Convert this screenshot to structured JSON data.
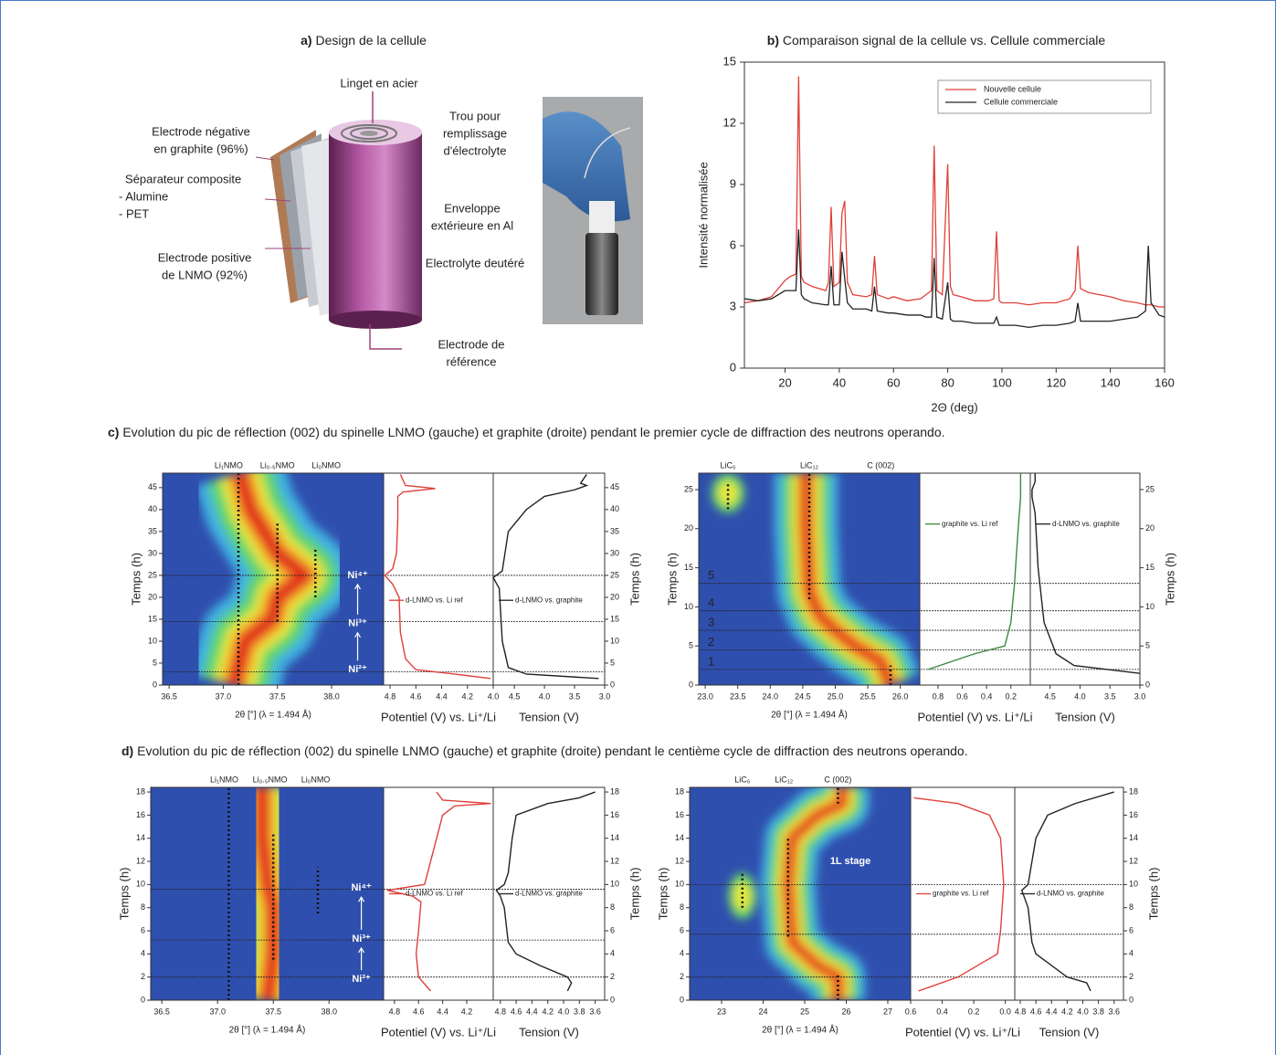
{
  "panel_a": {
    "label": "a)",
    "title": "Design de la cellule",
    "callouts": [
      {
        "lines": [
          "Linget en acier"
        ]
      },
      {
        "lines": [
          "Electrode négative",
          "en graphite (96%)"
        ]
      },
      {
        "lines": [
          "Séparateur composite",
          "- Alumine",
          "- PET"
        ]
      },
      {
        "lines": [
          "Electrode positive",
          "de LNMO (92%)"
        ]
      },
      {
        "lines": [
          "Trou pour",
          "remplissage",
          "d'électrolyte"
        ]
      },
      {
        "lines": [
          "Enveloppe",
          "extérieure en Al"
        ]
      },
      {
        "lines": [
          "Electrolyte deutéré"
        ]
      },
      {
        "lines": [
          "Electrode de",
          "référence"
        ]
      }
    ]
  },
  "panel_c": {
    "label": "c)",
    "title": "Evolution du pic de réflection (002) du spinelle LNMO (gauche) et graphite (droite) pendant le premier cycle de diffraction des neutrons operando."
  },
  "panel_d": {
    "label": "d)",
    "title": "Evolution du pic de réflection (002) du spinelle LNMO (gauche) et graphite (droite) pendant le centième cycle de diffraction des neutrons operando."
  },
  "chart_data": [
    {
      "type": "line",
      "label": "b)",
      "title": "Comparaison signal de la cellule vs. Cellule commerciale",
      "xlabel": "2Θ (deg)",
      "ylabel": "Intensité normalisée",
      "xlim": [
        5,
        160
      ],
      "xticks": [
        20,
        40,
        60,
        80,
        100,
        120,
        140,
        160
      ],
      "ylim": [
        0,
        15
      ],
      "yticks": [
        0,
        3,
        6,
        9,
        12,
        15
      ],
      "legend": "upper right",
      "x": [
        5,
        10,
        15,
        20,
        22,
        24,
        25,
        26,
        27,
        30,
        35,
        36,
        37,
        38,
        40,
        41,
        42,
        43,
        45,
        50,
        52,
        53,
        54,
        58,
        60,
        65,
        70,
        72,
        74,
        75,
        76,
        78,
        80,
        81,
        82,
        85,
        90,
        95,
        97,
        98,
        99,
        100,
        105,
        110,
        115,
        120,
        125,
        127,
        128,
        129,
        132,
        140,
        145,
        150,
        153,
        154,
        155,
        158,
        160
      ],
      "series": [
        {
          "name": "Nouvelle cellule",
          "color": "#e0403a",
          "values": [
            3.2,
            3.3,
            3.5,
            4.3,
            4.5,
            4.6,
            14.3,
            4.5,
            4.2,
            4.0,
            3.8,
            4.2,
            7.9,
            4.0,
            4.2,
            7.6,
            8.2,
            4.2,
            3.6,
            3.5,
            3.6,
            5.5,
            3.6,
            3.4,
            3.5,
            3.3,
            3.4,
            3.6,
            3.8,
            10.9,
            3.8,
            3.6,
            10.0,
            4.0,
            3.6,
            3.5,
            3.3,
            3.3,
            3.4,
            6.7,
            3.3,
            3.2,
            3.2,
            3.1,
            3.2,
            3.2,
            3.4,
            3.8,
            6.0,
            3.9,
            3.7,
            3.5,
            3.3,
            3.2,
            3.1,
            3.1,
            3.1,
            3.0,
            3.0
          ]
        },
        {
          "name": "Cellule commerciale",
          "color": "#222222",
          "values": [
            3.4,
            3.3,
            3.4,
            3.8,
            3.8,
            3.8,
            6.8,
            3.6,
            3.4,
            3.2,
            3.1,
            3.1,
            5.0,
            3.1,
            3.1,
            5.7,
            4.4,
            3.2,
            2.9,
            2.9,
            2.8,
            4.0,
            2.8,
            2.7,
            2.7,
            2.6,
            2.6,
            2.5,
            2.5,
            5.4,
            2.5,
            2.4,
            4.2,
            2.4,
            2.3,
            2.3,
            2.2,
            2.2,
            2.2,
            2.5,
            2.1,
            2.1,
            2.1,
            2.0,
            2.1,
            2.1,
            2.2,
            2.3,
            3.2,
            2.3,
            2.3,
            2.3,
            2.4,
            2.5,
            2.8,
            6.0,
            3.2,
            2.6,
            2.5
          ]
        }
      ]
    },
    {
      "type": "operando",
      "peak_labels": [
        {
          "text": "Li₁NMO",
          "x": 37.05
        },
        {
          "text": "Li₀.₅NMO",
          "x": 37.5
        },
        {
          "text": "Li₀NMO",
          "x": 37.95
        }
      ],
      "xlabel": "2θ [°] (λ = 1.494 Å)",
      "xlim": [
        36.44,
        38.48
      ],
      "xticks": [
        36.5,
        {
          "value": 37,
          "label": "37.0"
        },
        37.5,
        {
          "value": 38,
          "label": "38.0"
        }
      ],
      "ylabel": "Temps (h)",
      "ylim": [
        0,
        48.3
      ],
      "yticks": [
        0,
        5,
        10,
        15,
        20,
        25,
        30,
        35,
        40,
        45
      ],
      "ridge": {
        "time": [
          0,
          10,
          15,
          20,
          25,
          30,
          40,
          48.3
        ],
        "position": [
          37.1,
          37.2,
          37.45,
          37.5,
          37.75,
          37.5,
          37.25,
          37.15
        ]
      },
      "guides": [
        {
          "x": 37.14,
          "from": 0,
          "to": 48.3
        },
        {
          "x": 37.5,
          "from": 14.5,
          "to": 37
        },
        {
          "x": 37.85,
          "from": 20,
          "to": 31
        }
      ],
      "hlines": [
        3,
        14.5,
        25
      ],
      "annotations": [
        {
          "text": "Ni²⁺",
          "x": 38.24,
          "time": 3.5
        },
        {
          "text": "Ni³⁺",
          "x": 38.24,
          "time": 14
        },
        {
          "text": "Ni⁴⁺",
          "x": 38.24,
          "time": 25
        }
      ],
      "potential": {
        "xlabel": "Potentiel (V) vs. Li⁺/Li",
        "xlim": [
          4.85,
          4.0
        ],
        "xticks": [
          4.8,
          4.6,
          4.4,
          4.2,
          {
            "value": 4,
            "label": "4.0"
          }
        ],
        "series": {
          "name": "d-LNMO vs. Li ref",
          "color": "#e0403a",
          "time": [
            1.5,
            2.5,
            3.5,
            6,
            12,
            20,
            23,
            25,
            26.5,
            30,
            38,
            43,
            44,
            44.8,
            45.5,
            48
          ],
          "values": [
            4.02,
            4.3,
            4.6,
            4.68,
            4.72,
            4.73,
            4.78,
            4.84,
            4.78,
            4.75,
            4.74,
            4.74,
            4.7,
            4.45,
            4.68,
            4.72
          ]
        }
      },
      "tension": {
        "xlabel": "Tension (V)",
        "xlim": [
          4.85,
          3.0
        ],
        "xticks": [
          4.5,
          {
            "value": 4,
            "label": "4.0"
          },
          3.5,
          {
            "value": 3,
            "label": "3.0"
          }
        ],
        "series": {
          "name": "d-LNMO vs. graphite",
          "color": "#222222",
          "time": [
            1.5,
            2.5,
            4,
            10,
            22,
            24.5,
            26,
            35,
            40,
            43,
            44.5,
            45.5,
            46,
            48
          ],
          "values": [
            3.1,
            4.3,
            4.6,
            4.7,
            4.75,
            4.85,
            4.7,
            4.6,
            4.3,
            4.0,
            3.5,
            3.3,
            3.4,
            3.3
          ]
        }
      }
    },
    {
      "type": "operando",
      "peak_labels": [
        {
          "text": "LiC₆",
          "x": 23.35
        },
        {
          "text": "LiC₁₂",
          "x": 24.6
        },
        {
          "text": "C (002)",
          "x": 25.7
        }
      ],
      "xlabel": "2θ [°] (λ = 1.494 Å)",
      "xlim": [
        22.9,
        26.3
      ],
      "xticks": [
        {
          "value": 23,
          "label": "23.0"
        },
        23.5,
        {
          "value": 24,
          "label": "24.0"
        },
        24.5,
        {
          "value": 25,
          "label": "25.0"
        },
        25.5,
        {
          "value": 26,
          "label": "26.0"
        }
      ],
      "ylabel": "Temps (h)",
      "ylim": [
        0,
        27.1
      ],
      "yticks": [
        0,
        5,
        10,
        15,
        20,
        25
      ],
      "ridge": {
        "time": [
          0,
          3,
          5,
          7,
          9,
          12,
          20,
          27.1
        ],
        "position": [
          25.85,
          25.7,
          25.3,
          25.0,
          24.75,
          24.6,
          24.55,
          24.55
        ]
      },
      "spots": [
        {
          "x": 23.35,
          "from": 22,
          "to": 27.1
        }
      ],
      "guides": [
        {
          "x": 23.35,
          "from": 22.5,
          "to": 26
        },
        {
          "x": 24.6,
          "from": 11,
          "to": 27.1
        },
        {
          "x": 25.85,
          "from": 0,
          "to": 2.5
        }
      ],
      "hlines": [
        2,
        4.5,
        7,
        9.5,
        13
      ],
      "hline_labels": [
        "1",
        "2",
        "3",
        "4",
        "5"
      ],
      "potential": {
        "xlabel": "Potentiel (V) vs. Li⁺/Li",
        "xlim": [
          0.95,
          0.04
        ],
        "xticks": [
          0.8,
          0.6,
          0.4,
          0.2
        ],
        "series": {
          "name": "graphite vs. Li ref",
          "color": "#3a8a3a",
          "time": [
            2,
            4,
            5,
            8,
            13,
            20,
            24,
            26,
            27.1
          ],
          "values": [
            0.88,
            0.5,
            0.25,
            0.2,
            0.17,
            0.14,
            0.12,
            0.12,
            0.12
          ]
        }
      },
      "tension": {
        "xlabel": "Tension (V)",
        "xlim": [
          4.83,
          3.0
        ],
        "xticks": [
          4.5,
          {
            "value": 4,
            "label": "4.0"
          },
          3.5,
          {
            "value": 3,
            "label": "3.0"
          }
        ],
        "series": {
          "name": "d-LNMO vs. graphite",
          "color": "#222222",
          "time": [
            1.5,
            2.5,
            4,
            8,
            15,
            22,
            24,
            25,
            26,
            27.1
          ],
          "values": [
            3.0,
            4.1,
            4.4,
            4.6,
            4.7,
            4.75,
            4.8,
            4.8,
            4.75,
            4.75
          ]
        }
      }
    },
    {
      "type": "operando",
      "peak_labels": [
        {
          "text": "Li₁NMO",
          "x": 37.06
        },
        {
          "text": "Li₀.₅NMO",
          "x": 37.47
        },
        {
          "text": "Li₀NMO",
          "x": 37.88
        }
      ],
      "xlabel": "2θ [°] (λ = 1.494 Å)",
      "xlim": [
        36.4,
        38.49
      ],
      "xticks": [
        36.5,
        {
          "value": 37,
          "label": "37.0"
        },
        37.5,
        {
          "value": 38,
          "label": "38.0"
        }
      ],
      "ylabel": "Temps (h)",
      "ylim": [
        0,
        18.4
      ],
      "yticks": [
        0,
        2,
        4,
        6,
        8,
        10,
        12,
        14,
        16,
        18
      ],
      "ridge": {
        "time": [
          0,
          4,
          8,
          10,
          14,
          18.4
        ],
        "position": [
          37.45,
          37.5,
          37.5,
          37.45,
          37.4,
          37.4
        ]
      },
      "guides": [
        {
          "x": 37.1,
          "from": 0,
          "to": 18.4
        },
        {
          "x": 37.5,
          "from": 3.5,
          "to": 14.5
        },
        {
          "x": 37.9,
          "from": 7.5,
          "to": 11.5
        }
      ],
      "hlines": [
        2,
        5.2,
        9.6
      ],
      "annotations": [
        {
          "text": "Ni²⁺",
          "x": 38.29,
          "time": 1.8
        },
        {
          "text": "Ni³⁺",
          "x": 38.29,
          "time": 5.3
        },
        {
          "text": "Ni⁴⁺",
          "x": 38.29,
          "time": 9.7
        }
      ],
      "potential": {
        "xlabel": "Potentiel (V) vs. Li⁺/Li",
        "xlim": [
          4.89,
          3.98
        ],
        "xticks": [
          4.8,
          4.6,
          4.4,
          4.2
        ],
        "series": {
          "name": "d-LNMO vs. Li ref",
          "color": "#e0403a",
          "time": [
            0.8,
            2,
            4,
            6,
            8.5,
            9,
            9.5,
            10,
            12,
            14,
            16,
            16.8,
            17,
            17.3,
            18
          ],
          "values": [
            4.5,
            4.6,
            4.62,
            4.6,
            4.58,
            4.65,
            4.86,
            4.55,
            4.5,
            4.45,
            4.4,
            4.3,
            4.0,
            4.4,
            4.45
          ]
        }
      },
      "tension": {
        "xlabel": "Tension (V)",
        "xlim": [
          4.89,
          3.48
        ],
        "xticks": [
          4.8,
          4.6,
          4.4,
          4.2,
          {
            "value": 4,
            "label": "4.0"
          },
          3.8,
          3.6
        ],
        "series": {
          "name": "d-LNMO vs. graphite",
          "color": "#222222",
          "time": [
            0.8,
            1.5,
            2,
            3,
            4,
            5,
            8,
            9,
            9.5,
            10,
            11,
            14,
            16,
            17,
            17.5,
            18
          ],
          "values": [
            3.95,
            3.9,
            3.95,
            4.3,
            4.6,
            4.7,
            4.75,
            4.8,
            4.85,
            4.75,
            4.7,
            4.65,
            4.6,
            4.2,
            3.8,
            3.6
          ]
        }
      }
    },
    {
      "type": "operando",
      "peak_labels": [
        {
          "text": "LiC₆",
          "x": 23.5
        },
        {
          "text": "LiC₁₂",
          "x": 24.5
        },
        {
          "text": "C (002)",
          "x": 25.8
        }
      ],
      "xlabel": "2θ [°] (λ = 1.494 Å)",
      "xlim": [
        22.23,
        27.55
      ],
      "xticks": [
        23,
        24,
        25,
        26,
        27
      ],
      "ylabel": "Temps (h)",
      "ylim": [
        0,
        18.4
      ],
      "yticks": [
        0,
        2,
        4,
        6,
        8,
        10,
        12,
        14,
        16,
        18
      ],
      "ridge": {
        "time": [
          0,
          2,
          3,
          5,
          10,
          14,
          16,
          17,
          18.4
        ],
        "position": [
          25.8,
          25.8,
          25.3,
          24.7,
          24.6,
          24.7,
          25.3,
          25.9,
          25.9
        ]
      },
      "spots": [
        {
          "x": 23.5,
          "from": 7,
          "to": 11
        }
      ],
      "guides": [
        {
          "x": 23.5,
          "from": 8,
          "to": 11
        },
        {
          "x": 24.6,
          "from": 5.5,
          "to": 14
        },
        {
          "x": 25.8,
          "from": 0,
          "to": 2.3
        },
        {
          "x": 25.8,
          "from": 17,
          "to": 18.4
        }
      ],
      "hlines": [
        2,
        5.7,
        10
      ],
      "annotations": [
        {
          "text": "1L stage",
          "x": 26.1,
          "time": 12
        }
      ],
      "potential": {
        "xlabel": "Potentiel (V) vs. Li⁺/Li",
        "xlim": [
          0.6,
          -0.06
        ],
        "xticks": [
          0.6,
          0.4,
          0.2,
          {
            "value": 0,
            "label": "0.0"
          }
        ],
        "series": {
          "name": "graphite vs. Li ref",
          "color": "#e0403a",
          "time": [
            0.8,
            2,
            4,
            6,
            10,
            14,
            16,
            17,
            17.5
          ],
          "values": [
            0.55,
            0.3,
            0.05,
            0.03,
            0.01,
            0.03,
            0.1,
            0.3,
            0.58
          ]
        }
      },
      "tension": {
        "xlabel": "Tension (V)",
        "xlim": [
          4.87,
          3.48
        ],
        "xticks": [
          4.8,
          4.6,
          4.4,
          4.2,
          {
            "value": 4,
            "label": "4.0"
          },
          3.8,
          3.6
        ],
        "series": {
          "name": "d-LNMO vs. graphite",
          "color": "#222222",
          "time": [
            0.8,
            1.5,
            2,
            4,
            5,
            8,
            9.5,
            10,
            14,
            16,
            17,
            18
          ],
          "values": [
            3.9,
            3.95,
            4.2,
            4.6,
            4.65,
            4.7,
            4.78,
            4.7,
            4.6,
            4.45,
            4.1,
            3.6
          ]
        }
      }
    }
  ]
}
